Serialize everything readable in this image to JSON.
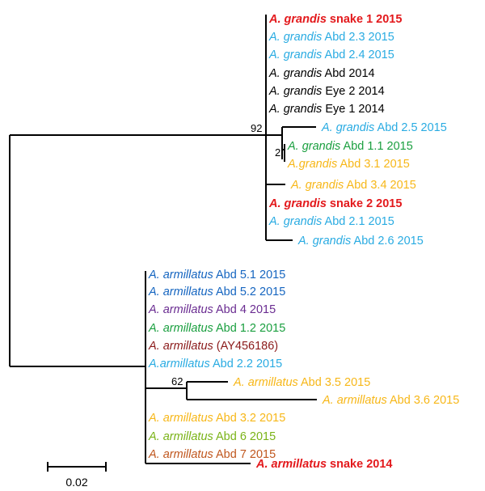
{
  "tree": {
    "taxa": [
      {
        "id": "t1",
        "species": "A. grandis",
        "rest": " snake 1 2015",
        "color": "#e3191c",
        "bold": true
      },
      {
        "id": "t2",
        "species": "A. grandis",
        "rest": " Abd 2.3 2015",
        "color": "#29abe2",
        "bold": false
      },
      {
        "id": "t3",
        "species": "A. grandis",
        "rest": " Abd 2.4 2015",
        "color": "#29abe2",
        "bold": false
      },
      {
        "id": "t4",
        "species": "A. grandis",
        "rest": " Abd 2014",
        "color": "#000000",
        "bold": false
      },
      {
        "id": "t5",
        "species": "A. grandis",
        "rest": " Eye 2 2014",
        "color": "#000000",
        "bold": false
      },
      {
        "id": "t6",
        "species": "A. grandis",
        "rest": " Eye 1 2014",
        "color": "#000000",
        "bold": false
      },
      {
        "id": "t7",
        "species": "A. grandis",
        "rest": " Abd 2.5 2015",
        "color": "#29abe2",
        "bold": false
      },
      {
        "id": "t8",
        "species": "A. grandis",
        "rest": " Abd 1.1 2015",
        "color": "#1a9f3f",
        "bold": false
      },
      {
        "id": "t9",
        "species": "A.grandis",
        "rest": " Abd 3.1 2015",
        "color": "#f7b718",
        "bold": false
      },
      {
        "id": "t10",
        "species": "A. grandis",
        "rest": " Abd 3.4 2015",
        "color": "#f7b718",
        "bold": false
      },
      {
        "id": "t11",
        "species": "A. grandis",
        "rest": " snake 2 2015",
        "color": "#e3191c",
        "bold": true
      },
      {
        "id": "t12",
        "species": "A. grandis",
        "rest": " Abd 2.1 2015",
        "color": "#29abe2",
        "bold": false
      },
      {
        "id": "t13",
        "species": "A. grandis",
        "rest": " Abd 2.6 2015",
        "color": "#29abe2",
        "bold": false
      },
      {
        "id": "t14",
        "species": "A. armillatus",
        "rest": " Abd 5.1 2015",
        "color": "#1565c0",
        "bold": false
      },
      {
        "id": "t15",
        "species": "A. armillatus",
        "rest": " Abd 5.2 2015",
        "color": "#1565c0",
        "bold": false
      },
      {
        "id": "t16",
        "species": "A. armillatus",
        "rest": " Abd 4 2015",
        "color": "#6a2c91",
        "bold": false
      },
      {
        "id": "t17",
        "species": "A. armillatus",
        "rest": " Abd 1.2 2015",
        "color": "#1a9f3f",
        "bold": false
      },
      {
        "id": "t18",
        "species": "A. armillatus",
        "rest": " (AY456186)",
        "color": "#8b1a1a",
        "bold": false
      },
      {
        "id": "t19",
        "species": "A.armillatus",
        "rest": " Abd 2.2 2015",
        "color": "#29abe2",
        "bold": false
      },
      {
        "id": "t20",
        "species": "A. armillatus",
        "rest": " Abd 3.5 2015",
        "color": "#f7b718",
        "bold": false
      },
      {
        "id": "t21",
        "species": "A. armillatus",
        "rest": " Abd 3.6 2015",
        "color": "#f7b718",
        "bold": false
      },
      {
        "id": "t22",
        "species": "A. armillatus",
        "rest": " Abd 3.2 2015",
        "color": "#f7b718",
        "bold": false
      },
      {
        "id": "t23",
        "species": "A. armillatus",
        "rest": " Abd 6 2015",
        "color": "#7ab317",
        "bold": false
      },
      {
        "id": "t24",
        "species": "A. armillatus",
        "rest": " Abd 7 2015",
        "color": "#c0571e",
        "bold": false
      },
      {
        "id": "t25",
        "species": "A. armillatus",
        "rest": " snake 2014",
        "color": "#e3191c",
        "bold": true
      }
    ],
    "support_values": [
      {
        "id": "s92",
        "value": "92"
      },
      {
        "id": "s2",
        "value": "2"
      },
      {
        "id": "s62",
        "value": "62"
      }
    ]
  },
  "scale_bar": {
    "label": "0.02",
    "length": 0.02
  }
}
